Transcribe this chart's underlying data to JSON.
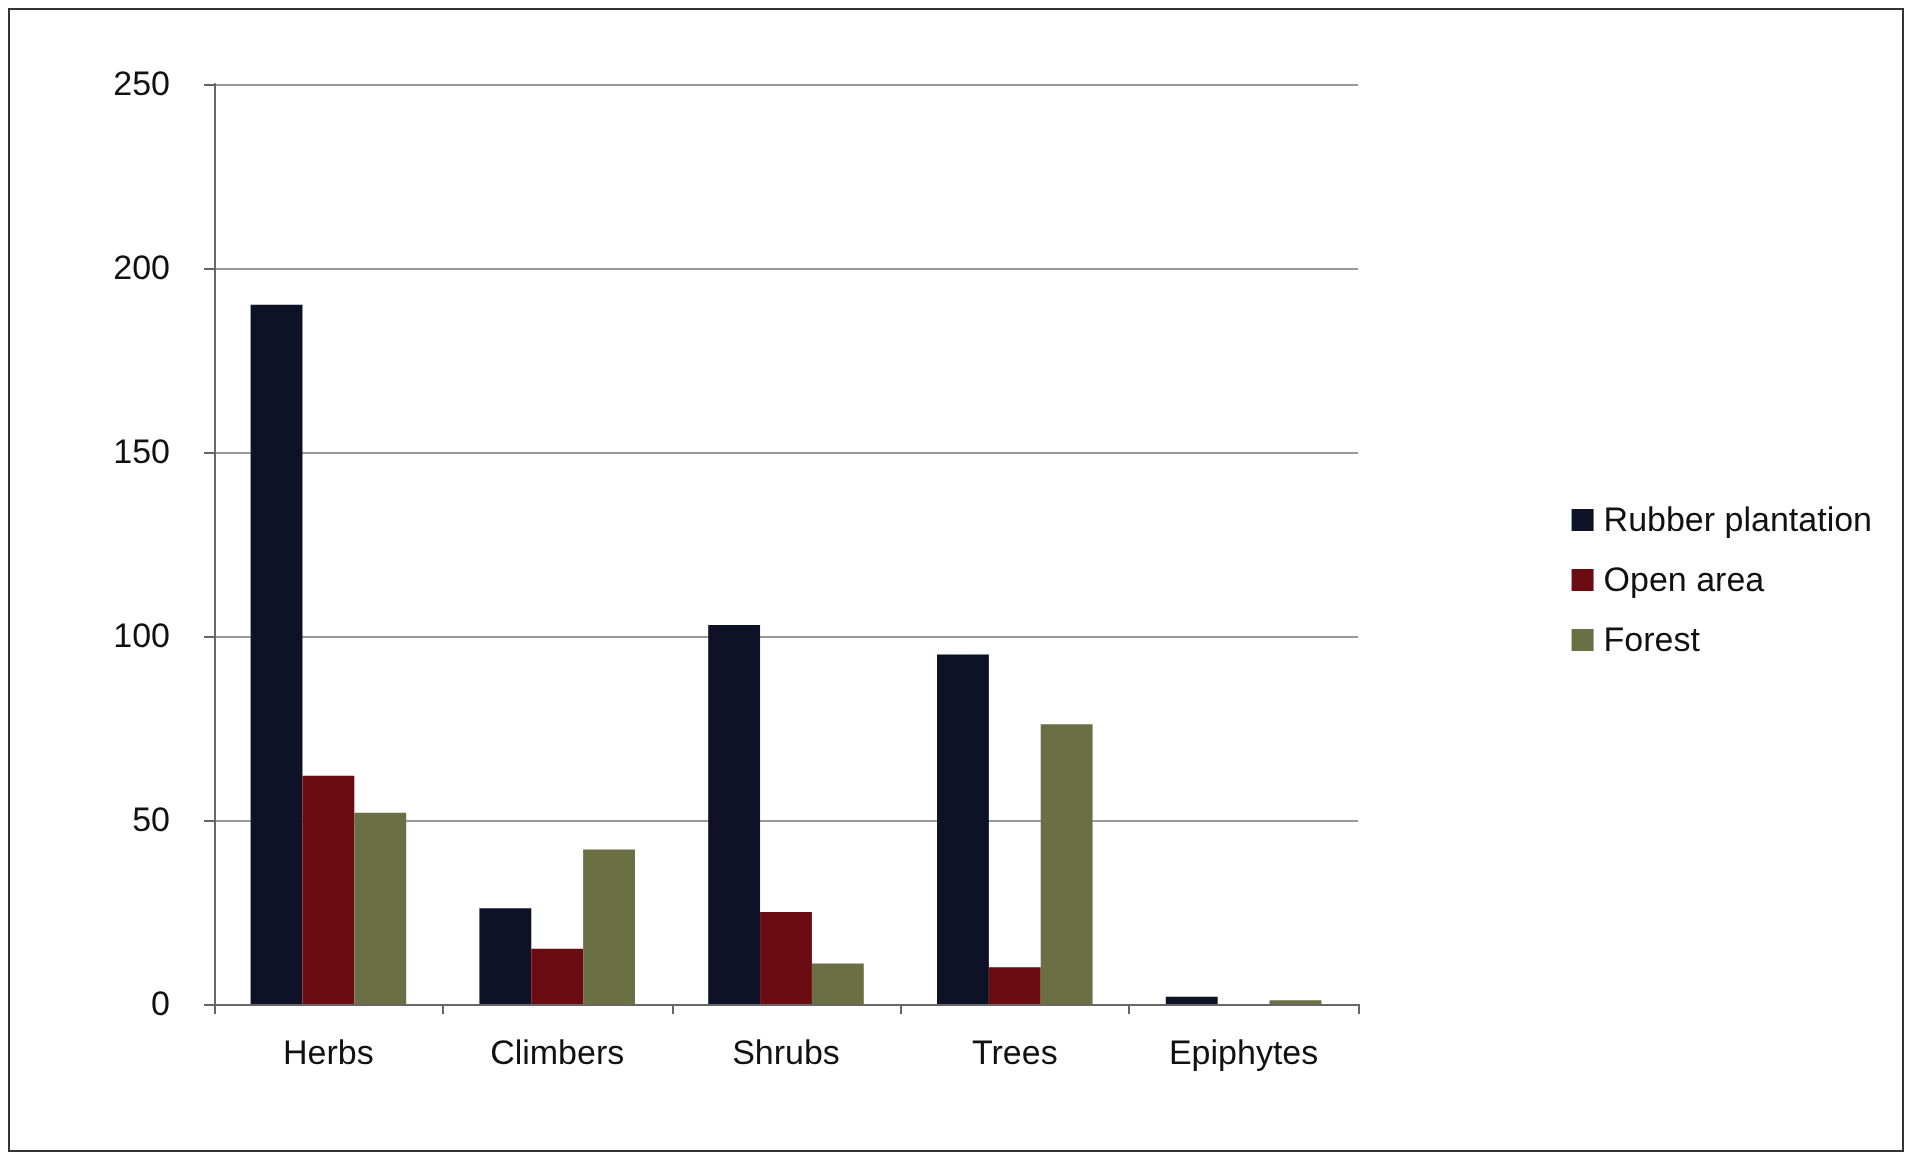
{
  "chart_data": {
    "type": "bar",
    "categories": [
      "Herbs",
      "Climbers",
      "Shrubs",
      "Trees",
      "Epiphytes"
    ],
    "series": [
      {
        "name": "Rubber plantation",
        "color": "#0d1226",
        "values": [
          190,
          26,
          103,
          95,
          2
        ]
      },
      {
        "name": "Open area",
        "color": "#6b0c12",
        "values": [
          62,
          15,
          25,
          10,
          0
        ]
      },
      {
        "name": "Forest",
        "color": "#6b7044",
        "values": [
          52,
          42,
          11,
          76,
          1
        ]
      }
    ],
    "ylim": [
      0,
      250
    ],
    "yticks": [
      0,
      50,
      100,
      150,
      200,
      250
    ],
    "grid": "y",
    "legend": "right"
  }
}
